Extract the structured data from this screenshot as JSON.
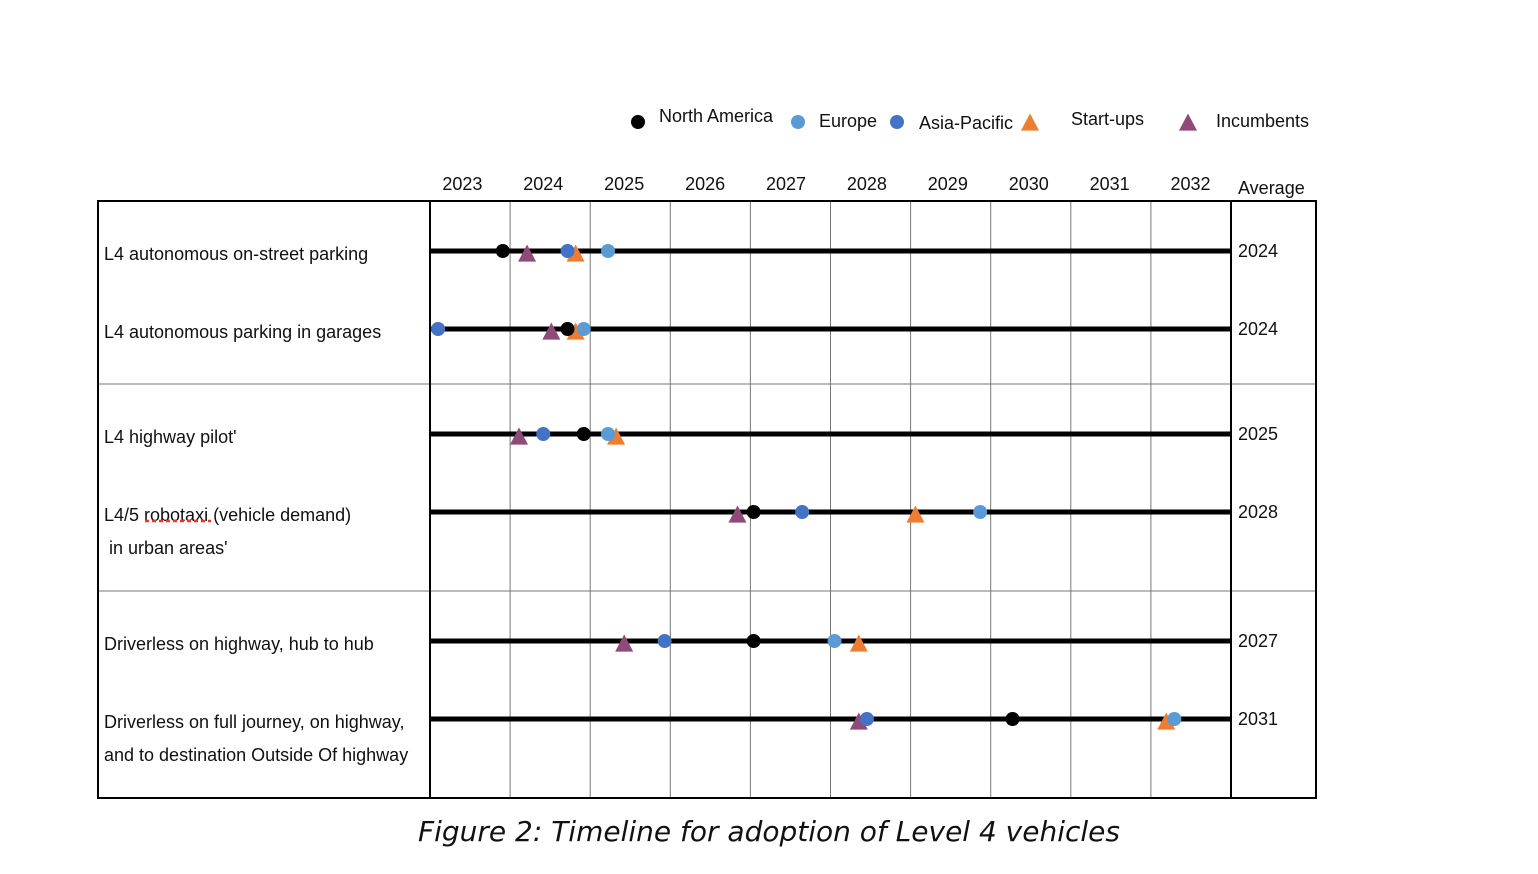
{
  "caption": "Figure 2: Timeline for adoption of Level 4 vehicles",
  "chart_data": {
    "type": "scatter",
    "title": "",
    "xlabel": "",
    "ylabel": "",
    "x_ticks": [
      2023,
      2024,
      2025,
      2026,
      2027,
      2028,
      2029,
      2030,
      2031,
      2032
    ],
    "x_range": [
      2022.6,
      2032.5
    ],
    "average_header": "Average",
    "grid": true,
    "legend_position": "top-right",
    "legend": [
      {
        "name": "North America",
        "marker": "circle",
        "color": "#000000"
      },
      {
        "name": "Europe",
        "marker": "circle",
        "color": "#5b9bd5"
      },
      {
        "name": "Asia-Pacific",
        "marker": "circle",
        "color": "#4472c4"
      },
      {
        "name": "Start-ups",
        "marker": "triangle",
        "color": "#ed7d31"
      },
      {
        "name": "Incumbents",
        "marker": "triangle",
        "color": "#8e4b7a"
      }
    ],
    "groups": [
      {
        "rows": [
          {
            "label_lines": [
              "L4 autonomous on-street parking"
            ],
            "average": "2024",
            "points": {
              "North America": 2023.5,
              "Incumbents": 2023.8,
              "Asia-Pacific": 2024.3,
              "Start-ups": 2024.4,
              "Europe": 2024.8
            }
          },
          {
            "label_lines": [
              "L4 autonomous parking in garages"
            ],
            "average": "2024",
            "points": {
              "Asia-Pacific": 2022.7,
              "Incumbents": 2024.1,
              "North America": 2024.3,
              "Start-ups": 2024.4,
              "Europe": 2024.5
            }
          }
        ]
      },
      {
        "rows": [
          {
            "label_lines": [
              "L4 highway pilot'"
            ],
            "average": "2025",
            "points": {
              "Incumbents": 2023.7,
              "Asia-Pacific": 2024.0,
              "North America": 2024.5,
              "Europe": 2024.8,
              "Start-ups": 2024.9
            }
          },
          {
            "label_lines": [
              "L4/5 robotaxi (vehicle demand)",
              " in urban areas'"
            ],
            "average": "2028",
            "points": {
              "Incumbents": 2026.4,
              "North America": 2026.6,
              "Asia-Pacific": 2027.2,
              "Start-ups": 2028.6,
              "Europe": 2029.4
            }
          }
        ]
      },
      {
        "rows": [
          {
            "label_lines": [
              "Driverless on highway, hub to hub"
            ],
            "average": "2027",
            "points": {
              "Incumbents": 2025.0,
              "Asia-Pacific": 2025.5,
              "North America": 2026.6,
              "Europe": 2027.6,
              "Start-ups": 2027.9
            }
          },
          {
            "label_lines": [
              "Driverless on full journey, on highway,",
              "and to destination Outside Of highway"
            ],
            "average": "2031",
            "points": {
              "Incumbents": 2027.9,
              "Asia-Pacific": 2028.0,
              "North America": 2029.8,
              "Start-ups": 2031.7,
              "Europe": 2031.8
            }
          }
        ]
      }
    ]
  }
}
